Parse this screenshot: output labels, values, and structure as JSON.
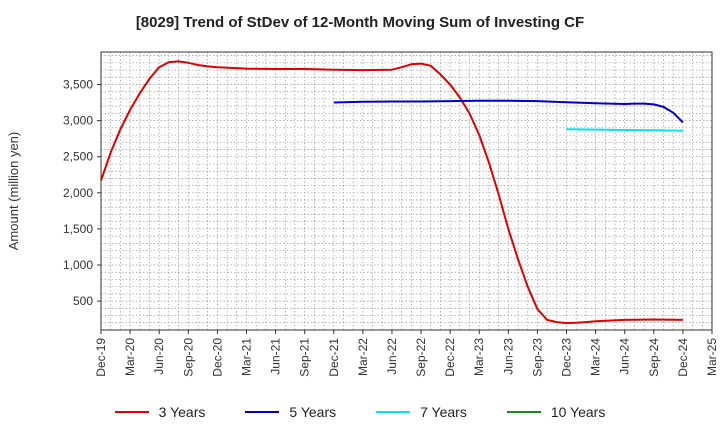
{
  "chart_data": {
    "type": "line",
    "title": "[8029]  Trend of StDev of 12-Month Moving Sum of Investing CF",
    "ylabel": "Amount (million yen)",
    "xlabel": "",
    "x_ticks": [
      "Dec-19",
      "Mar-20",
      "Jun-20",
      "Sep-20",
      "Dec-20",
      "Mar-21",
      "Jun-21",
      "Sep-21",
      "Dec-21",
      "Mar-22",
      "Jun-22",
      "Sep-22",
      "Dec-22",
      "Mar-23",
      "Jun-23",
      "Sep-23",
      "Dec-23",
      "Mar-24",
      "Jun-24",
      "Sep-24",
      "Dec-24",
      "Mar-25"
    ],
    "y_ticks": [
      500,
      1000,
      1500,
      2000,
      2500,
      3000,
      3500
    ],
    "y_tick_labels": [
      "500",
      "1,000",
      "1,500",
      "2,000",
      "2,500",
      "3,000",
      "3,500"
    ],
    "ylim": [
      100,
      3950
    ],
    "grid": true,
    "legend_position": "bottom",
    "series": [
      {
        "name": "3 Years",
        "color": "#e00000",
        "x": [
          "2019-12",
          "2020-01",
          "2020-02",
          "2020-03",
          "2020-04",
          "2020-05",
          "2020-06",
          "2020-07",
          "2020-08",
          "2020-09",
          "2020-10",
          "2020-11",
          "2020-12",
          "2021-03",
          "2021-06",
          "2021-09",
          "2021-12",
          "2022-03",
          "2022-06",
          "2022-07",
          "2022-08",
          "2022-09",
          "2022-10",
          "2022-11",
          "2022-12",
          "2023-01",
          "2023-02",
          "2023-03",
          "2023-04",
          "2023-05",
          "2023-06",
          "2023-07",
          "2023-08",
          "2023-09",
          "2023-10",
          "2023-11",
          "2023-12",
          "2024-01",
          "2024-02",
          "2024-03",
          "2024-06",
          "2024-09",
          "2024-12"
        ],
        "y": [
          2170,
          2560,
          2880,
          3150,
          3380,
          3580,
          3740,
          3810,
          3820,
          3800,
          3770,
          3750,
          3740,
          3720,
          3715,
          3715,
          3705,
          3700,
          3705,
          3740,
          3780,
          3790,
          3760,
          3640,
          3500,
          3320,
          3100,
          2800,
          2420,
          1980,
          1500,
          1080,
          700,
          390,
          240,
          210,
          195,
          200,
          210,
          220,
          240,
          245,
          240
        ]
      },
      {
        "name": "5 Years",
        "color": "#0000cc",
        "x": [
          "2021-12",
          "2022-03",
          "2022-06",
          "2022-09",
          "2022-12",
          "2023-03",
          "2023-06",
          "2023-09",
          "2023-12",
          "2024-03",
          "2024-06",
          "2024-07",
          "2024-08",
          "2024-09",
          "2024-10",
          "2024-11",
          "2024-12"
        ],
        "y": [
          3250,
          3260,
          3265,
          3265,
          3270,
          3275,
          3275,
          3270,
          3255,
          3240,
          3230,
          3235,
          3235,
          3225,
          3190,
          3110,
          2975
        ]
      },
      {
        "name": "7 Years",
        "color": "#00e5ee",
        "x": [
          "2023-12",
          "2024-03",
          "2024-06",
          "2024-09",
          "2024-12"
        ],
        "y": [
          2880,
          2875,
          2870,
          2865,
          2860
        ]
      },
      {
        "name": "10 Years",
        "color": "#1a8a1a",
        "x": [],
        "y": []
      }
    ]
  }
}
